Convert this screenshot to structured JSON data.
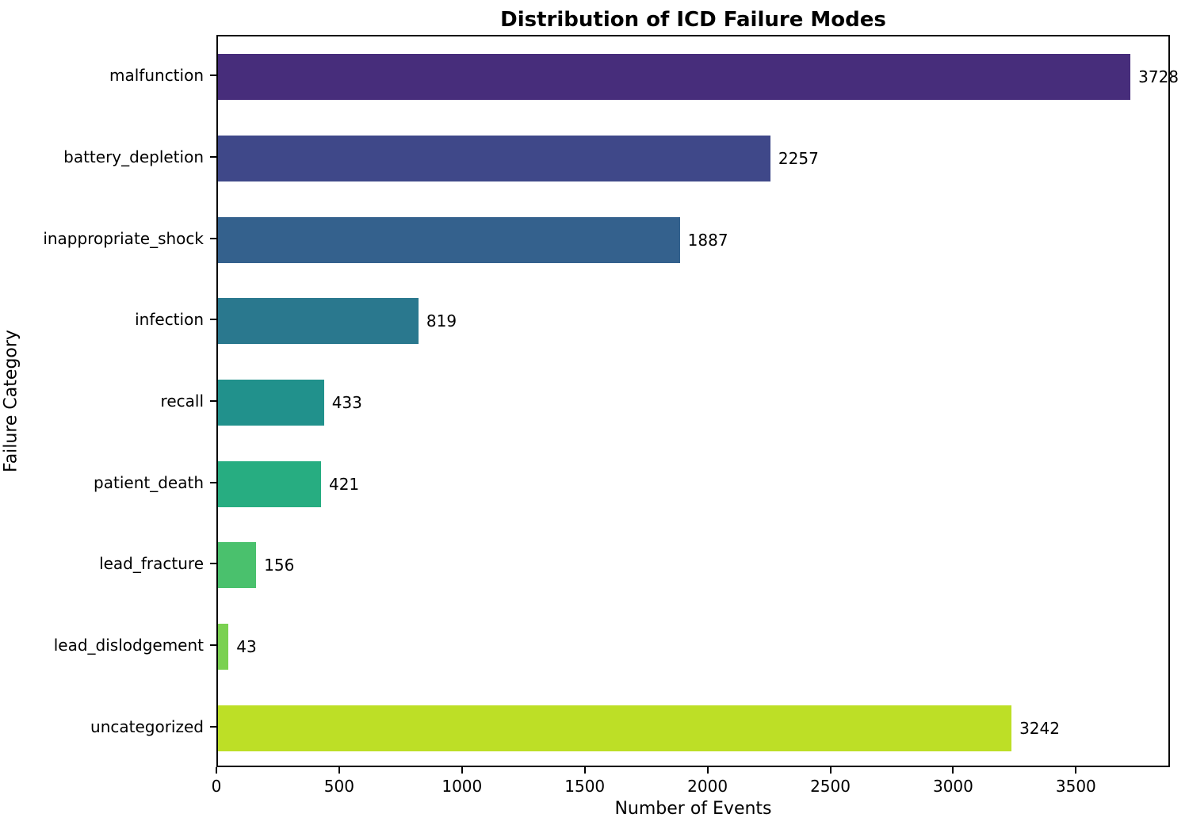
{
  "chart_data": {
    "type": "bar",
    "orientation": "horizontal",
    "title": "Distribution of ICD Failure Modes",
    "xlabel": "Number of Events",
    "ylabel": "Failure Category",
    "categories": [
      "malfunction",
      "battery_depletion",
      "inappropriate_shock",
      "infection",
      "recall",
      "patient_death",
      "lead_fracture",
      "lead_dislodgement",
      "uncategorized"
    ],
    "values": [
      3728,
      2257,
      1887,
      819,
      433,
      421,
      156,
      43,
      3242
    ],
    "bar_colors": [
      "#472d7b",
      "#3f4889",
      "#34618d",
      "#2a788e",
      "#21918c",
      "#27ad81",
      "#4ac16d",
      "#7ad151",
      "#bddf26"
    ],
    "value_labels": [
      "3728",
      "2257",
      "1887",
      "819",
      "433",
      "421",
      "156",
      "43",
      "3242"
    ],
    "xlim": [
      0,
      3883
    ],
    "xticks": [
      0,
      500,
      1000,
      1500,
      2000,
      2500,
      3000,
      3500
    ],
    "grid": false,
    "legend": null,
    "text_color": "#000000",
    "background_color": "#ffffff"
  }
}
